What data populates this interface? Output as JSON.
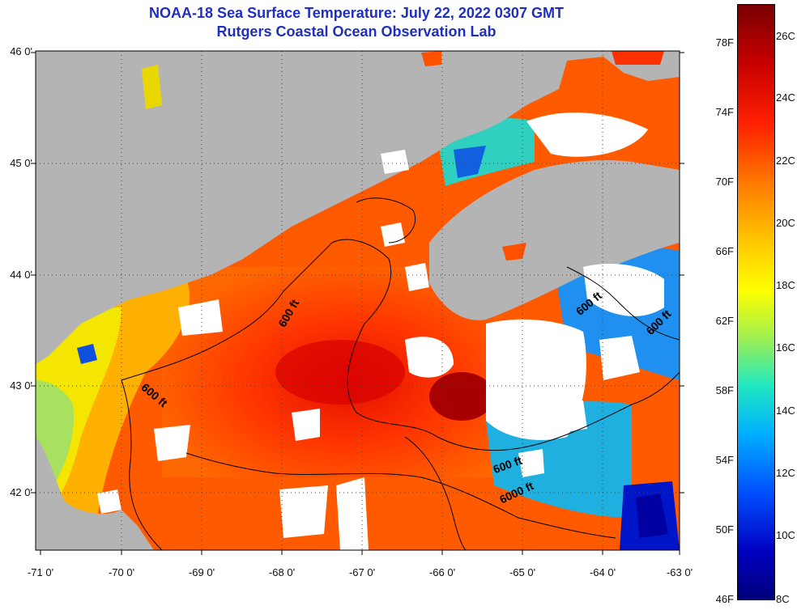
{
  "title": {
    "line1": "NOAA-18 Sea Surface Temperature:  July 22, 2022 0307 GMT",
    "line2": "Rutgers Coastal Ocean Observation Lab"
  },
  "axes": {
    "lat_labels": [
      "46 0'",
      "45 0'",
      "44 0'",
      "43 0'",
      "42 0'"
    ],
    "lon_labels": [
      "-71 0'",
      "-70 0'",
      "-69 0'",
      "-68 0'",
      "-67 0'",
      "-66 0'",
      "-65 0'",
      "-64 0'",
      "-63 0'"
    ]
  },
  "contours": {
    "labels": [
      "600 ft",
      "600 ft",
      "600 ft",
      "600 ft",
      "600 ft",
      "6000 ft"
    ]
  },
  "colorbar": {
    "fahrenheit": [
      "78F",
      "74F",
      "70F",
      "66F",
      "62F",
      "58F",
      "54F",
      "50F",
      "46F"
    ],
    "celsius": [
      "26C",
      "24C",
      "22C",
      "20C",
      "18C",
      "16C",
      "14C",
      "12C",
      "10C",
      "8C"
    ]
  },
  "colors": {
    "title": "#1f2fbf",
    "land": "#b4b4b4",
    "clouds": "#ffffff",
    "warm_sst": "#ff4a00"
  }
}
